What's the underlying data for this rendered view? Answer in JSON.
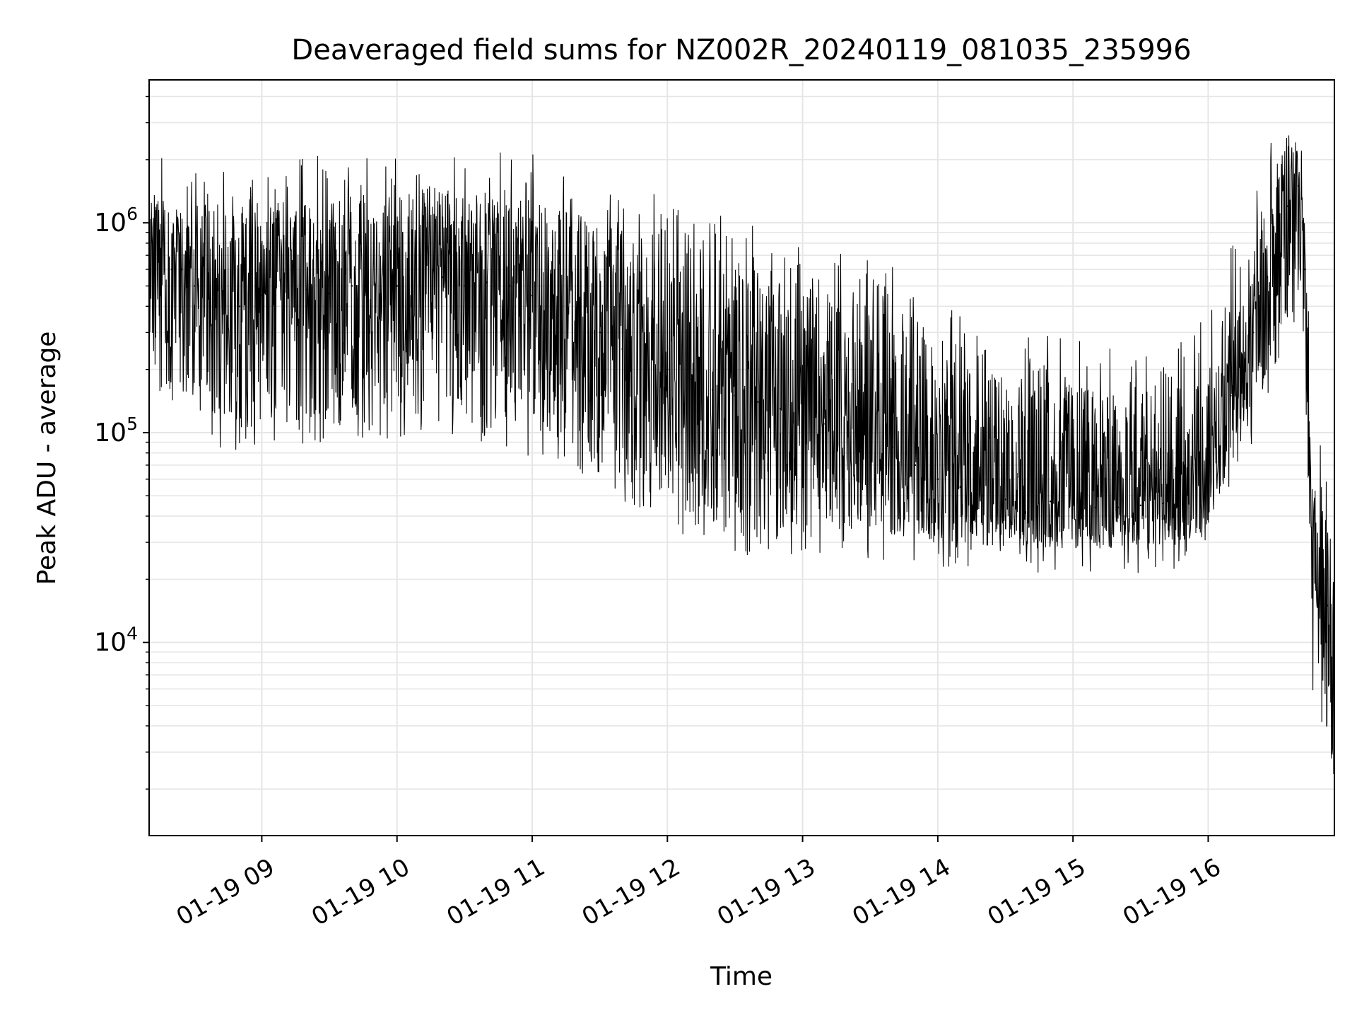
{
  "chart_data": {
    "type": "line",
    "title": "Deaveraged field sums for NZ002R_20240119_081035_235996",
    "xlabel": "Time",
    "ylabel": "Peak ADU - average",
    "yscale": "log",
    "ylim": [
      1200,
      4800000
    ],
    "xlim": [
      "2024-01-19 08:10",
      "2024-01-19 16:56"
    ],
    "x_ticks": [
      {
        "label": "01-19 09",
        "time": "2024-01-19 09:00"
      },
      {
        "label": "01-19 10",
        "time": "2024-01-19 10:00"
      },
      {
        "label": "01-19 11",
        "time": "2024-01-19 11:00"
      },
      {
        "label": "01-19 12",
        "time": "2024-01-19 12:00"
      },
      {
        "label": "01-19 13",
        "time": "2024-01-19 13:00"
      },
      {
        "label": "01-19 14",
        "time": "2024-01-19 14:00"
      },
      {
        "label": "01-19 15",
        "time": "2024-01-19 15:00"
      },
      {
        "label": "01-19 16",
        "time": "2024-01-19 16:00"
      }
    ],
    "y_ticks": [
      {
        "base": "10",
        "exp": "4",
        "value": 10000
      },
      {
        "base": "10",
        "exp": "5",
        "value": 100000
      },
      {
        "base": "10",
        "exp": "6",
        "value": 1000000
      }
    ],
    "grid": true,
    "line_color": "#000000",
    "grid_color": "#e6e6e6",
    "series": [
      {
        "x": [
          "2024-01-19 08:10",
          "2024-01-19 08:20",
          "2024-01-19 08:30",
          "2024-01-19 08:40",
          "2024-01-19 08:50",
          "2024-01-19 09:00",
          "2024-01-19 09:10",
          "2024-01-19 09:20",
          "2024-01-19 09:30",
          "2024-01-19 09:40",
          "2024-01-19 09:50",
          "2024-01-19 10:00",
          "2024-01-19 10:10",
          "2024-01-19 10:20",
          "2024-01-19 10:30",
          "2024-01-19 10:40",
          "2024-01-19 10:50",
          "2024-01-19 11:00",
          "2024-01-19 11:10",
          "2024-01-19 11:20",
          "2024-01-19 11:30",
          "2024-01-19 11:40",
          "2024-01-19 11:50",
          "2024-01-19 12:00",
          "2024-01-19 12:10",
          "2024-01-19 12:20",
          "2024-01-19 12:30",
          "2024-01-19 12:40",
          "2024-01-19 12:50",
          "2024-01-19 13:00",
          "2024-01-19 13:10",
          "2024-01-19 13:20",
          "2024-01-19 13:30",
          "2024-01-19 13:40",
          "2024-01-19 13:50",
          "2024-01-19 14:00",
          "2024-01-19 14:10",
          "2024-01-19 14:20",
          "2024-01-19 14:30",
          "2024-01-19 14:40",
          "2024-01-19 14:50",
          "2024-01-19 15:00",
          "2024-01-19 15:10",
          "2024-01-19 15:20",
          "2024-01-19 15:30",
          "2024-01-19 15:40",
          "2024-01-19 15:50",
          "2024-01-19 16:00",
          "2024-01-19 16:10",
          "2024-01-19 16:20",
          "2024-01-19 16:30",
          "2024-01-19 16:35",
          "2024-01-19 16:40",
          "2024-01-19 16:43",
          "2024-01-19 16:46",
          "2024-01-19 16:50",
          "2024-01-19 16:53",
          "2024-01-19 16:56"
        ],
        "y": [
          800000,
          600000,
          500000,
          450000,
          400000,
          450000,
          500000,
          480000,
          460000,
          500000,
          520000,
          500000,
          600000,
          550000,
          500000,
          520000,
          500000,
          450000,
          400000,
          350000,
          300000,
          250000,
          230000,
          200000,
          180000,
          160000,
          150000,
          140000,
          130000,
          120000,
          110000,
          100000,
          90000,
          85000,
          70000,
          60000,
          55000,
          50000,
          48000,
          47000,
          47000,
          45000,
          44000,
          44000,
          45000,
          46000,
          47000,
          50000,
          150000,
          300000,
          700000,
          1200000,
          1500000,
          600000,
          30000,
          25000,
          15000,
          2500
        ],
        "peak_min": [
          200000,
          150000,
          120000,
          110000,
          100000,
          110000,
          120000,
          115000,
          110000,
          110000,
          120000,
          120000,
          130000,
          120000,
          110000,
          110000,
          110000,
          100000,
          90000,
          80000,
          70000,
          60000,
          55000,
          50000,
          40000,
          35000,
          32000,
          30000,
          32000,
          35000,
          35000,
          35000,
          33000,
          32000,
          30000,
          30000,
          29000,
          28000,
          28000,
          28000,
          28000,
          28000,
          28000,
          28000,
          28000,
          28000,
          30000,
          35000,
          70000,
          120000,
          200000,
          300000,
          400000,
          200000,
          8000,
          6000,
          2500,
          1700
        ],
        "peak_max": [
          1400000,
          1300000,
          1200000,
          1250000,
          1200000,
          1250000,
          1300000,
          1280000,
          1250000,
          1300000,
          1350000,
          1350000,
          1400000,
          1400000,
          1350000,
          1400000,
          1450000,
          1300000,
          1200000,
          1100000,
          1000000,
          950000,
          900000,
          850000,
          800000,
          700000,
          650000,
          600000,
          550000,
          500000,
          450000,
          420000,
          400000,
          380000,
          300000,
          250000,
          220000,
          200000,
          190000,
          180000,
          180000,
          170000,
          160000,
          160000,
          170000,
          170000,
          180000,
          250000,
          500000,
          900000,
          1800000,
          2800000,
          2400000,
          1000000,
          55000,
          55000,
          45000,
          10000
        ]
      }
    ]
  }
}
